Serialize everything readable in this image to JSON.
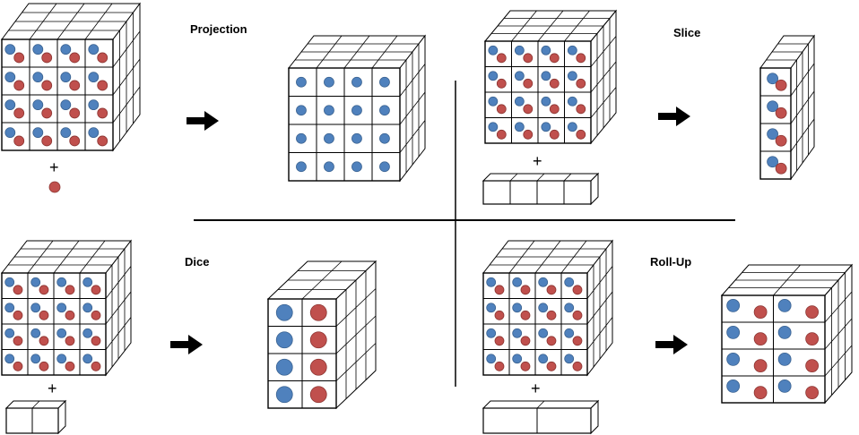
{
  "labels": {
    "projection": "Projection",
    "slice": "Slice",
    "dice": "Dice",
    "rollup": "Roll-Up",
    "plus": "+"
  },
  "colors": {
    "blue": "#4f81bd",
    "blue_stroke": "#3a6290",
    "red": "#c0504d",
    "red_stroke": "#8c3532",
    "line": "#000000"
  },
  "panels": [
    {
      "name": "projection",
      "source_cells_per_row": 4,
      "source_rows": 4,
      "source_dots_per_cell": 2,
      "operand": "red-dot",
      "result": "blue dots only, 4 x 4"
    },
    {
      "name": "slice",
      "source_cells_per_row": 4,
      "source_rows": 4,
      "source_dots_per_cell": 2,
      "operand": "1 x 4 bar",
      "result": "single column, 4 rows"
    },
    {
      "name": "dice",
      "source_cells_per_row": 4,
      "source_rows": 4,
      "source_dots_per_cell": 2,
      "operand": "1 x 2 bar",
      "result": "2 columns, 4 rows"
    },
    {
      "name": "rollup",
      "source_cells_per_row": 4,
      "source_rows": 4,
      "source_dots_per_cell": 2,
      "operand": "1 x 2 bar",
      "result": "2 merged columns, 4 rows"
    }
  ]
}
